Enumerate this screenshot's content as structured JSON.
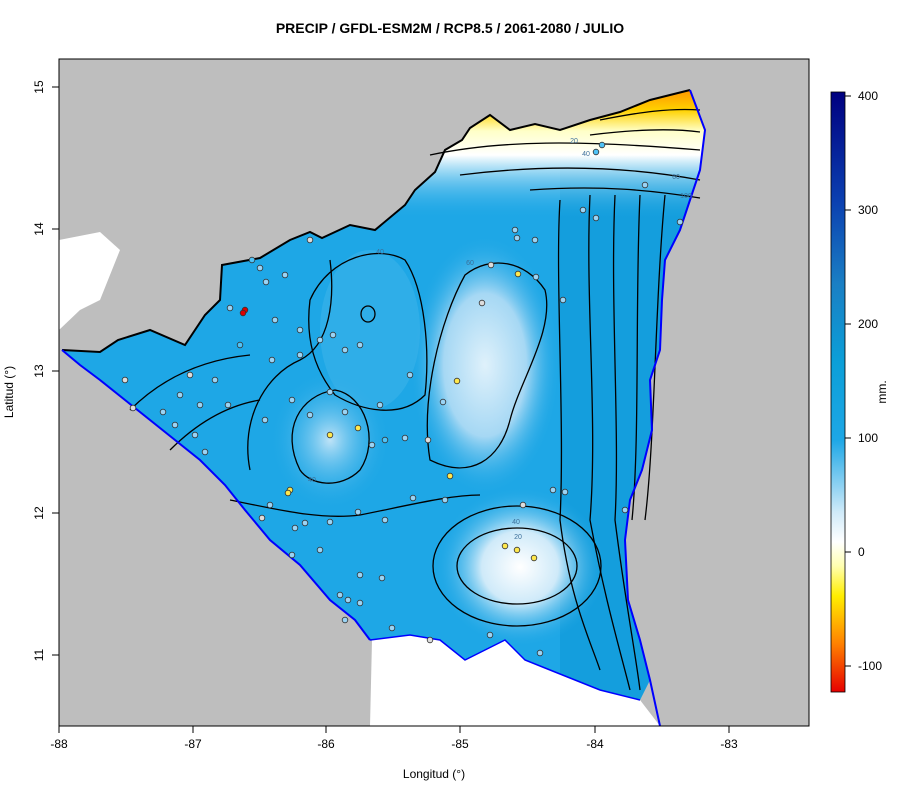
{
  "title": "PRECIP / GFDL-ESM2M / RCP8.5 / 2061-2080 / JULIO",
  "xlabel": "Longitud (°)",
  "ylabel": "Latitud (°)",
  "x_ticks": [
    "-88",
    "-87",
    "-86",
    "-85",
    "-84",
    "-83"
  ],
  "y_ticks": [
    "15",
    "14",
    "13",
    "12",
    "11"
  ],
  "colorbar": {
    "unit_label": "mm.",
    "ticks": [
      "400",
      "300",
      "200",
      "100",
      "0",
      "-100"
    ]
  },
  "contour_labels": [
    "20",
    "40",
    "60",
    "100",
    "40",
    "60",
    "40",
    "40",
    "20"
  ],
  "colors": {
    "land_background": "#bebebe",
    "country_fill": "#1ea7e6",
    "coastline": "#0000ff",
    "border": "#000000"
  }
}
